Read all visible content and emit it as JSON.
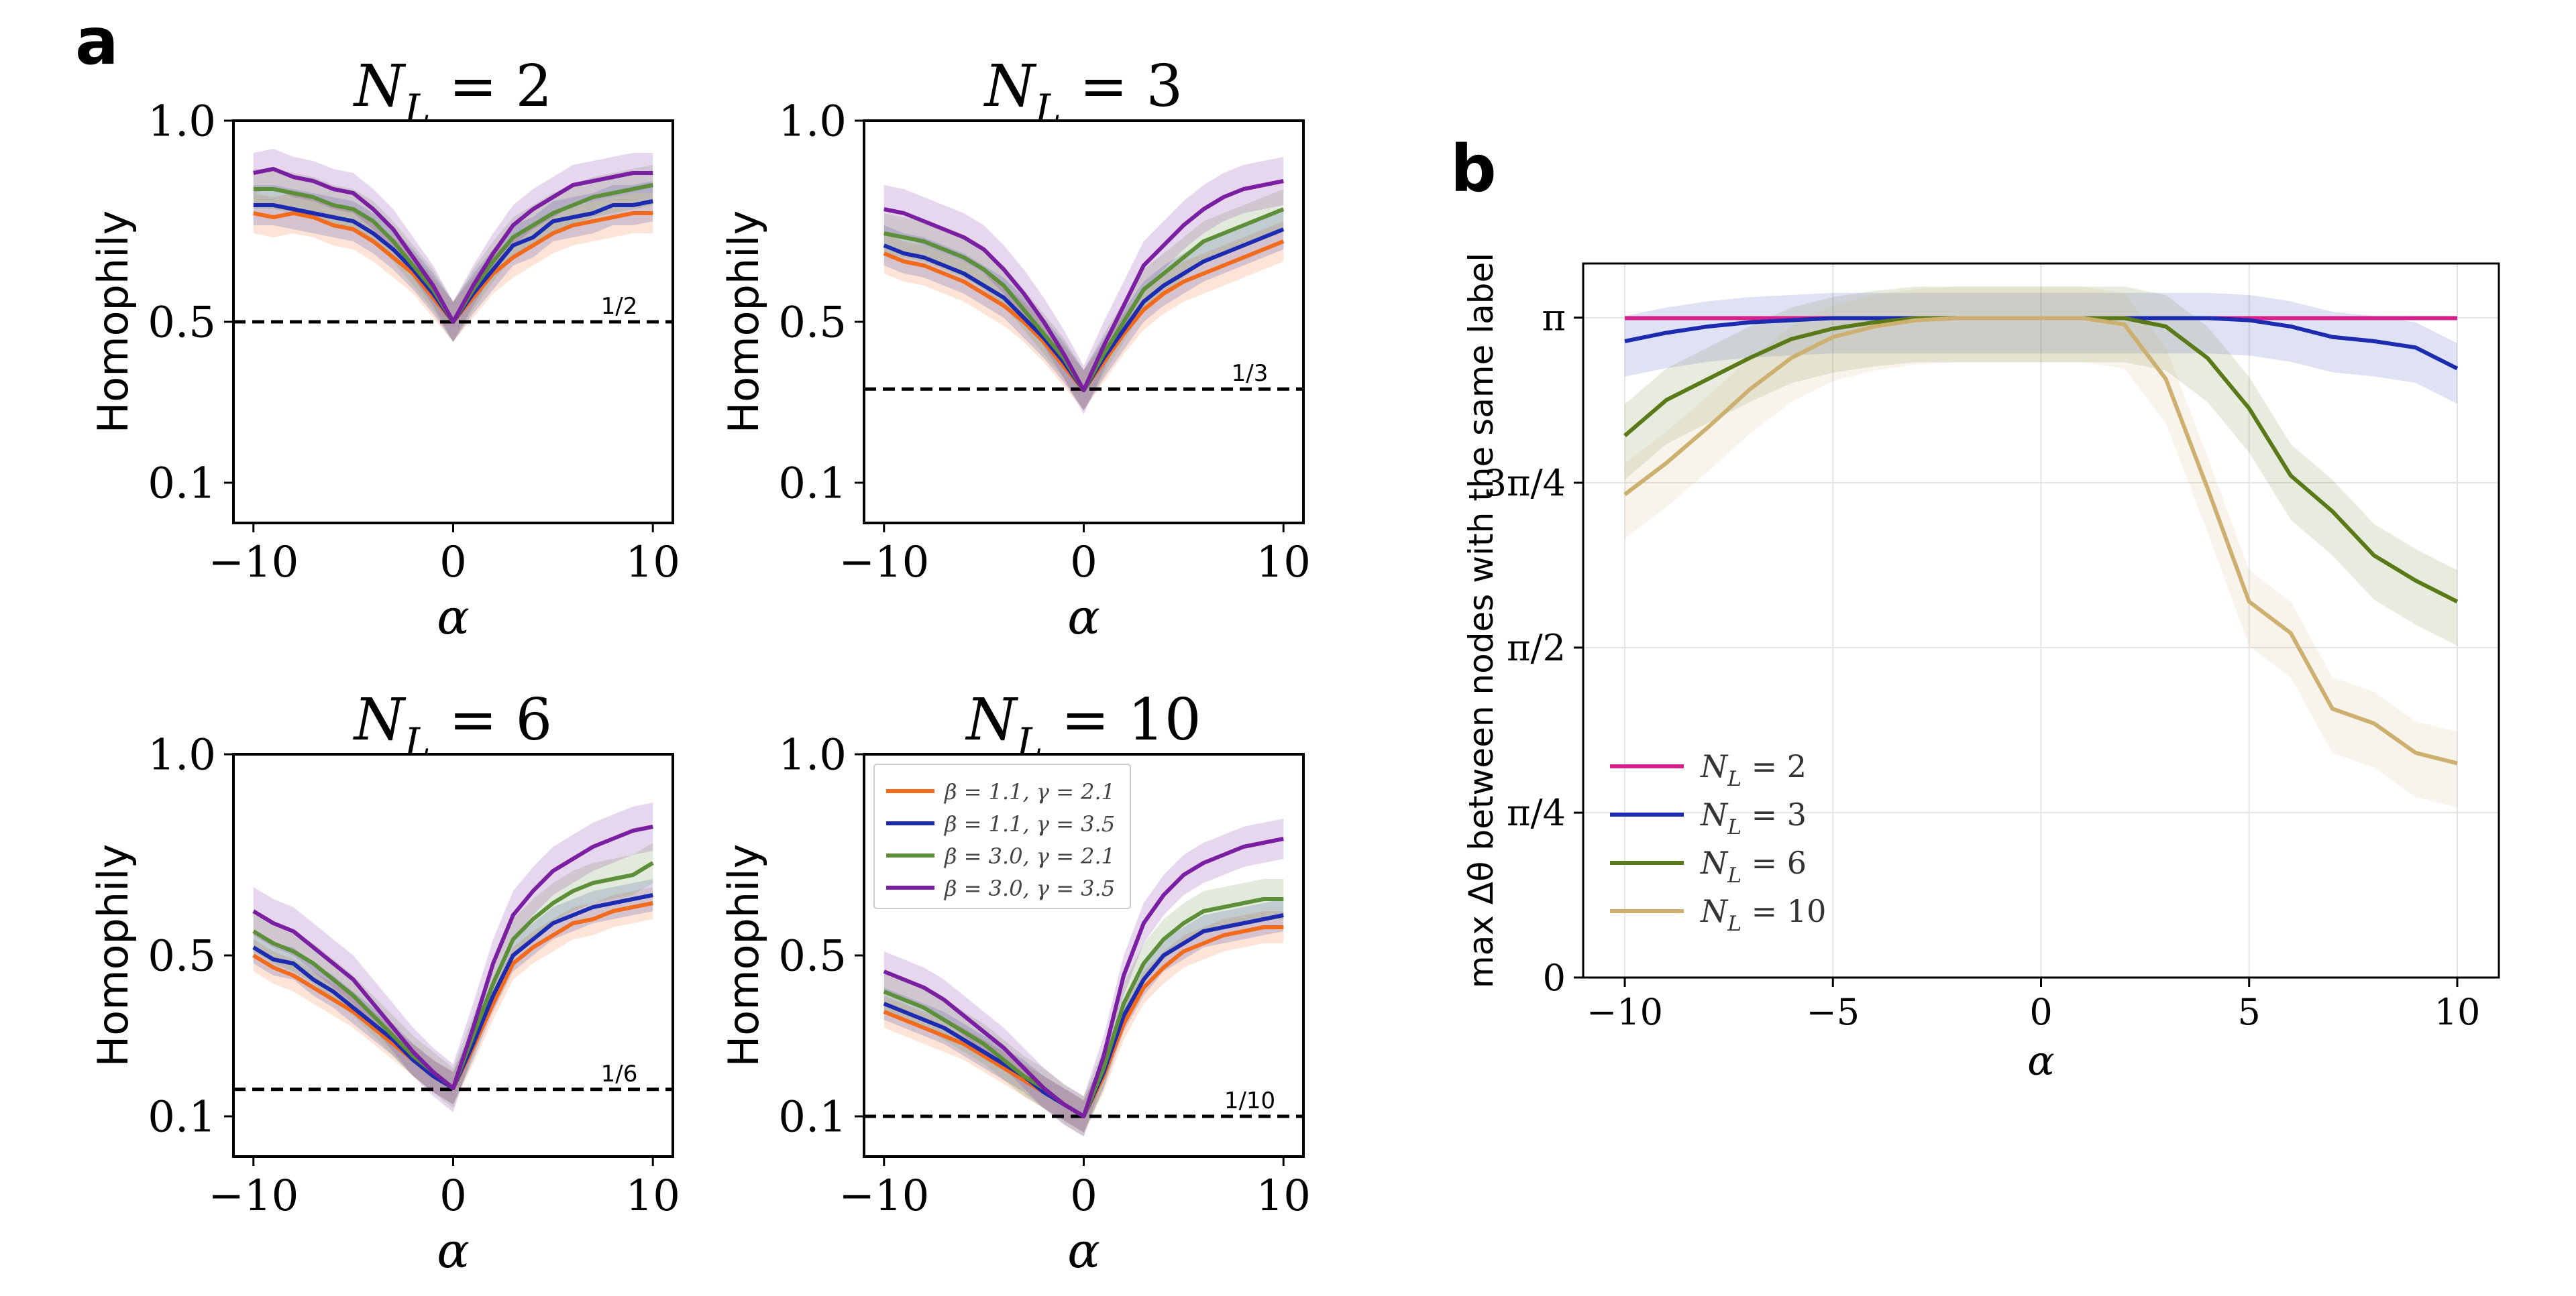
{
  "panel_labels": {
    "a": "a",
    "b": "b"
  },
  "chart_data": [
    {
      "type": "line",
      "panel": "a",
      "title": "N_L = 2",
      "xlabel": "α",
      "ylabel": "Homophily",
      "xlim": [
        -11,
        11
      ],
      "ylim": [
        0.0,
        1.0
      ],
      "yticks": [
        0.1,
        0.5,
        1.0
      ],
      "ytick_labels": [
        "0.1",
        "0.5",
        "1.0"
      ],
      "xticks": [
        -10,
        0,
        10
      ],
      "xtick_labels": [
        "−10",
        "0",
        "10"
      ],
      "baseline": 0.5,
      "baseline_label": "1/2",
      "x": [
        -10,
        -9,
        -8,
        -7,
        -6,
        -5,
        -4,
        -3,
        -2,
        -1,
        0,
        1,
        2,
        3,
        4,
        5,
        6,
        7,
        8,
        9,
        10
      ],
      "series": [
        {
          "name": "β = 1.1, γ = 2.1",
          "color": "#f26b1d",
          "band": 0.05,
          "values": [
            0.77,
            0.76,
            0.77,
            0.76,
            0.74,
            0.73,
            0.7,
            0.66,
            0.62,
            0.56,
            0.5,
            0.56,
            0.62,
            0.66,
            0.69,
            0.72,
            0.74,
            0.75,
            0.76,
            0.77,
            0.77
          ]
        },
        {
          "name": "β = 1.1, γ = 3.5",
          "color": "#1c2bb0",
          "band": 0.05,
          "values": [
            0.79,
            0.79,
            0.78,
            0.77,
            0.76,
            0.75,
            0.72,
            0.68,
            0.63,
            0.57,
            0.5,
            0.57,
            0.63,
            0.69,
            0.71,
            0.75,
            0.76,
            0.77,
            0.79,
            0.79,
            0.8
          ]
        },
        {
          "name": "β = 3.0, γ = 2.1",
          "color": "#5d8f3a",
          "band": 0.05,
          "values": [
            0.83,
            0.83,
            0.82,
            0.81,
            0.79,
            0.78,
            0.75,
            0.7,
            0.64,
            0.58,
            0.5,
            0.58,
            0.65,
            0.71,
            0.74,
            0.77,
            0.79,
            0.81,
            0.82,
            0.83,
            0.84
          ]
        },
        {
          "name": "β = 3.0, γ = 3.5",
          "color": "#7a1fa2",
          "band": 0.05,
          "values": [
            0.87,
            0.88,
            0.86,
            0.85,
            0.83,
            0.82,
            0.78,
            0.73,
            0.66,
            0.59,
            0.5,
            0.59,
            0.67,
            0.74,
            0.78,
            0.81,
            0.84,
            0.85,
            0.86,
            0.87,
            0.87
          ]
        }
      ]
    },
    {
      "type": "line",
      "panel": "a",
      "title": "N_L = 3",
      "xlabel": "α",
      "ylabel": "Homophily",
      "xlim": [
        -11,
        11
      ],
      "ylim": [
        0.0,
        1.0
      ],
      "yticks": [
        0.1,
        0.5,
        1.0
      ],
      "ytick_labels": [
        "0.1",
        "0.5",
        "1.0"
      ],
      "xticks": [
        -10,
        0,
        10
      ],
      "xtick_labels": [
        "−10",
        "0",
        "10"
      ],
      "baseline": 0.333,
      "baseline_label": "1/3",
      "x": [
        -10,
        -9,
        -8,
        -7,
        -6,
        -5,
        -4,
        -3,
        -2,
        -1,
        0,
        1,
        2,
        3,
        4,
        5,
        6,
        7,
        8,
        9,
        10
      ],
      "series": [
        {
          "name": "β = 1.1, γ = 2.1",
          "color": "#f26b1d",
          "band": 0.05,
          "values": [
            0.67,
            0.65,
            0.64,
            0.62,
            0.6,
            0.57,
            0.54,
            0.5,
            0.45,
            0.39,
            0.33,
            0.4,
            0.47,
            0.53,
            0.57,
            0.6,
            0.62,
            0.64,
            0.66,
            0.68,
            0.7
          ]
        },
        {
          "name": "β = 1.1, γ = 3.5",
          "color": "#1c2bb0",
          "band": 0.05,
          "values": [
            0.69,
            0.67,
            0.66,
            0.64,
            0.62,
            0.59,
            0.56,
            0.51,
            0.46,
            0.4,
            0.33,
            0.41,
            0.48,
            0.55,
            0.59,
            0.62,
            0.65,
            0.67,
            0.69,
            0.71,
            0.73
          ]
        },
        {
          "name": "β = 3.0, γ = 2.1",
          "color": "#5d8f3a",
          "band": 0.05,
          "values": [
            0.72,
            0.71,
            0.7,
            0.68,
            0.66,
            0.63,
            0.59,
            0.53,
            0.47,
            0.41,
            0.33,
            0.42,
            0.5,
            0.58,
            0.62,
            0.66,
            0.7,
            0.72,
            0.74,
            0.76,
            0.78
          ]
        },
        {
          "name": "β = 3.0, γ = 3.5",
          "color": "#7a1fa2",
          "band": 0.06,
          "values": [
            0.78,
            0.77,
            0.75,
            0.73,
            0.71,
            0.68,
            0.63,
            0.57,
            0.5,
            0.42,
            0.33,
            0.44,
            0.54,
            0.64,
            0.69,
            0.74,
            0.78,
            0.81,
            0.83,
            0.84,
            0.85
          ]
        }
      ]
    },
    {
      "type": "line",
      "panel": "a",
      "title": "N_L = 6",
      "xlabel": "α",
      "ylabel": "Homophily",
      "xlim": [
        -11,
        11
      ],
      "ylim": [
        0.0,
        1.0
      ],
      "yticks": [
        0.1,
        0.5,
        1.0
      ],
      "ytick_labels": [
        "0.1",
        "0.5",
        "1.0"
      ],
      "xticks": [
        -10,
        0,
        10
      ],
      "xtick_labels": [
        "−10",
        "0",
        "10"
      ],
      "baseline": 0.167,
      "baseline_label": "1/6",
      "x": [
        -10,
        -9,
        -8,
        -7,
        -6,
        -5,
        -4,
        -3,
        -2,
        -1,
        0,
        1,
        2,
        3,
        4,
        5,
        6,
        7,
        8,
        9,
        10
      ],
      "series": [
        {
          "name": "β = 1.1, γ = 2.1",
          "color": "#f26b1d",
          "band": 0.04,
          "values": [
            0.5,
            0.47,
            0.45,
            0.42,
            0.39,
            0.36,
            0.32,
            0.28,
            0.24,
            0.2,
            0.17,
            0.27,
            0.38,
            0.48,
            0.52,
            0.55,
            0.58,
            0.59,
            0.61,
            0.62,
            0.63
          ]
        },
        {
          "name": "β = 1.1, γ = 3.5",
          "color": "#1c2bb0",
          "band": 0.04,
          "values": [
            0.52,
            0.49,
            0.48,
            0.44,
            0.41,
            0.37,
            0.33,
            0.29,
            0.24,
            0.2,
            0.17,
            0.28,
            0.4,
            0.5,
            0.54,
            0.58,
            0.6,
            0.62,
            0.63,
            0.64,
            0.65
          ]
        },
        {
          "name": "β = 3.0, γ = 2.1",
          "color": "#5d8f3a",
          "band": 0.05,
          "values": [
            0.56,
            0.53,
            0.51,
            0.48,
            0.44,
            0.4,
            0.35,
            0.3,
            0.25,
            0.21,
            0.17,
            0.3,
            0.43,
            0.54,
            0.59,
            0.63,
            0.66,
            0.68,
            0.69,
            0.7,
            0.73
          ]
        },
        {
          "name": "β = 3.0, γ = 3.5",
          "color": "#7a1fa2",
          "band": 0.06,
          "values": [
            0.61,
            0.58,
            0.56,
            0.52,
            0.48,
            0.44,
            0.38,
            0.32,
            0.26,
            0.21,
            0.17,
            0.32,
            0.48,
            0.6,
            0.66,
            0.71,
            0.74,
            0.77,
            0.79,
            0.81,
            0.82
          ]
        }
      ]
    },
    {
      "type": "line",
      "panel": "a",
      "title": "N_L = 10",
      "xlabel": "α",
      "ylabel": "Homophily",
      "xlim": [
        -11,
        11
      ],
      "ylim": [
        0.0,
        1.0
      ],
      "yticks": [
        0.1,
        0.5,
        1.0
      ],
      "ytick_labels": [
        "0.1",
        "0.5",
        "1.0"
      ],
      "xticks": [
        -10,
        0,
        10
      ],
      "xtick_labels": [
        "−10",
        "0",
        "10"
      ],
      "baseline": 0.1,
      "baseline_label": "1/10",
      "x": [
        -10,
        -9,
        -8,
        -7,
        -6,
        -5,
        -4,
        -3,
        -2,
        -1,
        0,
        1,
        2,
        3,
        4,
        5,
        6,
        7,
        8,
        9,
        10
      ],
      "legend": "top-left",
      "series": [
        {
          "name": "β = 1.1, γ = 2.1",
          "color": "#f26b1d",
          "band": 0.04,
          "values": [
            0.36,
            0.34,
            0.32,
            0.3,
            0.28,
            0.25,
            0.22,
            0.19,
            0.16,
            0.13,
            0.1,
            0.2,
            0.33,
            0.42,
            0.47,
            0.51,
            0.53,
            0.55,
            0.56,
            0.57,
            0.57
          ]
        },
        {
          "name": "β = 1.1, γ = 3.5",
          "color": "#1c2bb0",
          "band": 0.04,
          "values": [
            0.38,
            0.36,
            0.34,
            0.32,
            0.29,
            0.26,
            0.23,
            0.2,
            0.16,
            0.13,
            0.1,
            0.21,
            0.35,
            0.44,
            0.5,
            0.53,
            0.56,
            0.57,
            0.58,
            0.59,
            0.6
          ]
        },
        {
          "name": "β = 3.0, γ = 2.1",
          "color": "#5d8f3a",
          "band": 0.05,
          "values": [
            0.41,
            0.39,
            0.37,
            0.34,
            0.31,
            0.28,
            0.24,
            0.2,
            0.17,
            0.13,
            0.1,
            0.22,
            0.38,
            0.48,
            0.54,
            0.58,
            0.61,
            0.62,
            0.63,
            0.64,
            0.64
          ]
        },
        {
          "name": "β = 3.0, γ = 3.5",
          "color": "#7a1fa2",
          "band": 0.05,
          "values": [
            0.46,
            0.44,
            0.42,
            0.39,
            0.35,
            0.31,
            0.27,
            0.22,
            0.17,
            0.13,
            0.1,
            0.25,
            0.45,
            0.58,
            0.65,
            0.7,
            0.73,
            0.75,
            0.77,
            0.78,
            0.79
          ]
        }
      ]
    },
    {
      "type": "line",
      "panel": "b",
      "title": "",
      "xlabel": "α",
      "ylabel": "max Δθ between nodes with the same label",
      "xlim": [
        -11,
        11
      ],
      "ylim": [
        0,
        3.4
      ],
      "yticks": [
        0,
        0.785,
        1.571,
        2.356,
        3.142
      ],
      "ytick_labels": [
        "0",
        "π/4",
        "π/2",
        "3π/4",
        "π"
      ],
      "xticks": [
        -10,
        -5,
        0,
        5,
        10
      ],
      "xtick_labels": [
        "−10",
        "−5",
        "0",
        "5",
        "10"
      ],
      "grid": true,
      "legend": "bottom-left",
      "x": [
        -10,
        -9,
        -8,
        -7,
        -6,
        -5,
        -4,
        -3,
        -2,
        -1,
        0,
        1,
        2,
        3,
        4,
        5,
        6,
        7,
        8,
        9,
        10
      ],
      "series": [
        {
          "name": "N_L = 2",
          "color": "#d6218c",
          "band": 0.0,
          "values": [
            3.14,
            3.14,
            3.14,
            3.14,
            3.14,
            3.14,
            3.14,
            3.14,
            3.14,
            3.14,
            3.14,
            3.14,
            3.14,
            3.14,
            3.14,
            3.14,
            3.14,
            3.14,
            3.14,
            3.14,
            3.14
          ]
        },
        {
          "name": "N_L = 3",
          "color": "#1c2bb0",
          "band": 0.12,
          "values": [
            3.03,
            3.07,
            3.1,
            3.12,
            3.13,
            3.14,
            3.14,
            3.14,
            3.14,
            3.14,
            3.14,
            3.14,
            3.14,
            3.14,
            3.14,
            3.13,
            3.1,
            3.05,
            3.03,
            3.0,
            2.9
          ]
        },
        {
          "name": "N_L = 6",
          "color": "#5a7a1a",
          "band": 0.15,
          "values": [
            2.58,
            2.75,
            2.85,
            2.95,
            3.04,
            3.09,
            3.12,
            3.14,
            3.14,
            3.14,
            3.14,
            3.14,
            3.14,
            3.1,
            2.95,
            2.71,
            2.39,
            2.22,
            2.01,
            1.89,
            1.79
          ]
        },
        {
          "name": "N_L = 10",
          "color": "#cdb070",
          "band": 0.15,
          "values": [
            2.3,
            2.45,
            2.62,
            2.8,
            2.95,
            3.05,
            3.1,
            3.13,
            3.14,
            3.14,
            3.14,
            3.14,
            3.11,
            2.85,
            2.33,
            1.79,
            1.64,
            1.28,
            1.21,
            1.07,
            1.02
          ]
        }
      ]
    }
  ]
}
